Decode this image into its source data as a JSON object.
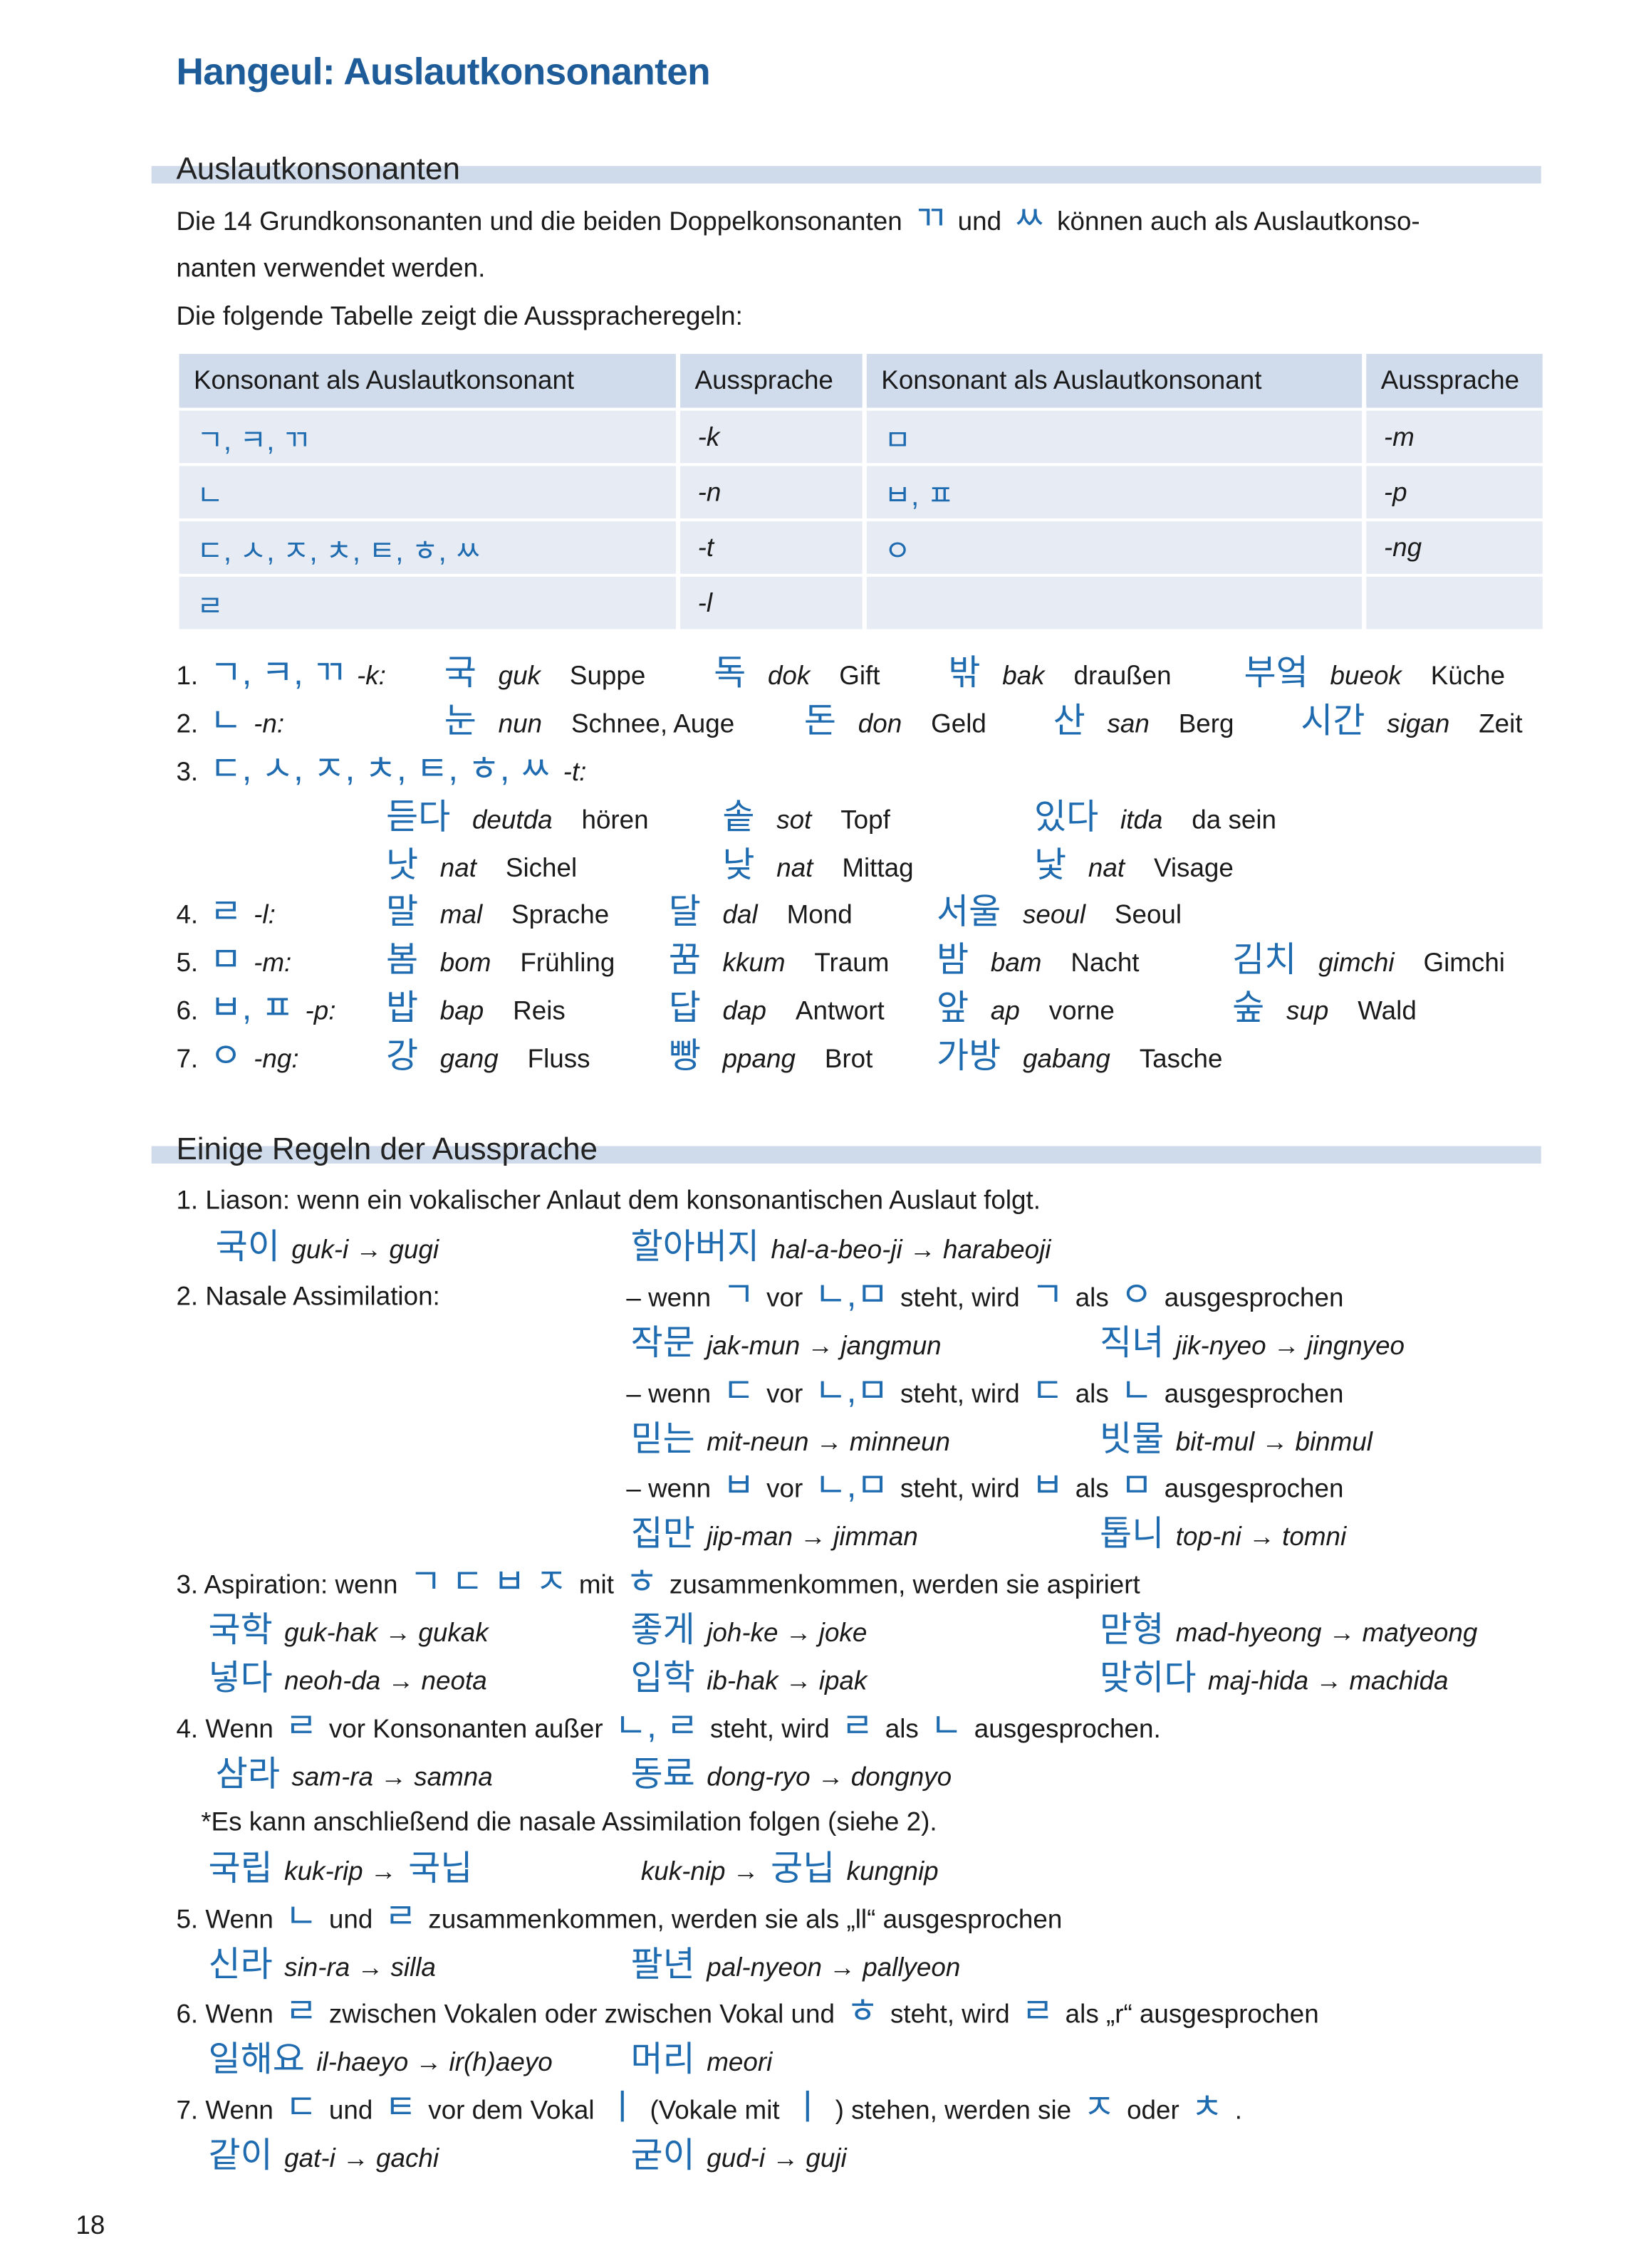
{
  "title": "Hangeul: Auslautkonsonanten",
  "section1": {
    "heading": "Auslautkonsonanten",
    "intro": [
      [
        [
          "n",
          "Die 14 Grundkonsonanten und die beiden Doppelkonsonanten"
        ],
        [
          "k",
          "ㄲ"
        ],
        [
          "n",
          "und"
        ],
        [
          "k",
          "ㅆ"
        ],
        [
          "n",
          "können auch als Auslautkonso-"
        ]
      ],
      [
        [
          "n",
          "nanten  verwendet werden."
        ]
      ],
      [
        [
          "n",
          "Die folgende Tabelle zeigt die Ausspracheregeln:"
        ]
      ]
    ],
    "table": {
      "headers": [
        "Konsonant als Auslautkonsonant",
        "Aussprache",
        "Konsonant als Auslautkonsonant",
        "Aussprache"
      ],
      "rows": [
        [
          "ㄱ, ㅋ, ㄲ",
          "-k",
          "ㅁ",
          "-m"
        ],
        [
          "ㄴ",
          "-n",
          "ㅂ, ㅍ",
          "-p"
        ],
        [
          "ㄷ, ㅅ, ㅈ, ㅊ, ㅌ, ㅎ, ㅆ",
          "-t",
          "ㅇ",
          "-ng"
        ],
        [
          "ㄹ",
          "-l",
          "",
          ""
        ]
      ]
    },
    "examples": [
      {
        "label": [
          [
            "n",
            "1."
          ],
          [
            "k",
            "ㄱ, ㅋ, ㄲ"
          ],
          [
            "i",
            "-k:"
          ]
        ],
        "items": [
          [
            "국",
            "guk",
            "Suppe"
          ],
          [
            "독",
            "dok",
            "Gift"
          ],
          [
            "밖",
            "bak",
            "draußen"
          ],
          [
            "부엌",
            "bueok",
            "Küche"
          ]
        ]
      },
      {
        "label": [
          [
            "n",
            "2."
          ],
          [
            "k",
            "ㄴ"
          ],
          [
            "i",
            "-n:"
          ]
        ],
        "items": [
          [
            "눈",
            "nun",
            "Schnee, Auge"
          ],
          [
            "돈",
            "don",
            "Geld"
          ],
          [
            "산",
            "san",
            "Berg"
          ],
          [
            "시간",
            "sigan",
            "Zeit"
          ]
        ]
      },
      {
        "label": [
          [
            "n",
            "3."
          ],
          [
            "k",
            "ㄷ, ㅅ, ㅈ, ㅊ, ㅌ, ㅎ, ㅆ"
          ],
          [
            "i",
            "-t:"
          ]
        ],
        "items": []
      },
      {
        "label": [],
        "items": [
          [
            "듣다",
            "deutda",
            "hören"
          ],
          [
            "솥",
            "sot",
            "Topf"
          ],
          [
            "있다",
            "itda",
            "da sein"
          ]
        ]
      },
      {
        "label": [],
        "items": [
          [
            "낫",
            "nat",
            "Sichel"
          ],
          [
            "낮",
            "nat",
            "Mittag"
          ],
          [
            "낯",
            "nat",
            "Visage"
          ]
        ]
      },
      {
        "label": [
          [
            "n",
            "4."
          ],
          [
            "k",
            "ㄹ"
          ],
          [
            "i",
            "-l:"
          ]
        ],
        "items": [
          [
            "말",
            "mal",
            "Sprache"
          ],
          [
            "달",
            "dal",
            "Mond"
          ],
          [
            "서울",
            "seoul",
            "Seoul"
          ]
        ]
      },
      {
        "label": [
          [
            "n",
            "5."
          ],
          [
            "k",
            "ㅁ"
          ],
          [
            "i",
            "-m:"
          ]
        ],
        "items": [
          [
            "봄",
            "bom",
            "Frühling"
          ],
          [
            "꿈",
            "kkum",
            "Traum"
          ],
          [
            "밤",
            "bam",
            "Nacht"
          ],
          [
            "김치",
            "gimchi",
            "Gimchi"
          ]
        ]
      },
      {
        "label": [
          [
            "n",
            "6."
          ],
          [
            "k",
            "ㅂ, ㅍ"
          ],
          [
            "i",
            "-p:"
          ]
        ],
        "items": [
          [
            "밥",
            "bap",
            "Reis"
          ],
          [
            "답",
            "dap",
            "Antwort"
          ],
          [
            "앞",
            "ap",
            "vorne"
          ],
          [
            "숲",
            "sup",
            "Wald"
          ]
        ]
      },
      {
        "label": [
          [
            "n",
            "7."
          ],
          [
            "k",
            "ㅇ"
          ],
          [
            "i",
            "-ng:"
          ]
        ],
        "items": [
          [
            "강",
            "gang",
            "Fluss"
          ],
          [
            "빵",
            "ppang",
            "Brot"
          ],
          [
            "가방",
            "gabang",
            "Tasche"
          ]
        ]
      }
    ]
  },
  "section2": {
    "heading": "Einige Regeln der Aussprache",
    "lines": [
      [
        [
          [
            "n",
            "1.  Liason: wenn ein vokalischer Anlaut dem konsonantischen Auslaut folgt."
          ]
        ]
      ],
      [
        [
          [
            "k",
            "국이"
          ],
          [
            "i",
            "guk-i → gugi"
          ]
        ],
        [
          [
            "k",
            "할아버지"
          ],
          [
            "i",
            "hal-a-beo-ji → harabeoji"
          ]
        ]
      ],
      [
        [
          [
            "n",
            "2. Nasale Assimilation:"
          ]
        ],
        [
          [
            "n",
            "– wenn"
          ],
          [
            "k",
            "ㄱ"
          ],
          [
            "n",
            "vor"
          ],
          [
            "k",
            "ㄴ,ㅁ"
          ],
          [
            "n",
            "steht, wird"
          ],
          [
            "k",
            "ㄱ"
          ],
          [
            "n",
            "als"
          ],
          [
            "k",
            "ㅇ"
          ],
          [
            "n",
            "ausgesprochen"
          ]
        ]
      ],
      [
        [],
        [
          [
            "k",
            "작문"
          ],
          [
            "i",
            "jak-mun → jangmun"
          ]
        ],
        [
          [
            "k",
            "직녀"
          ],
          [
            "i",
            "jik-nyeo → jingnyeo"
          ]
        ]
      ],
      [
        [],
        [
          [
            "n",
            "– wenn"
          ],
          [
            "k",
            "ㄷ"
          ],
          [
            "n",
            "vor"
          ],
          [
            "k",
            "ㄴ,ㅁ"
          ],
          [
            "n",
            "steht, wird"
          ],
          [
            "k",
            "ㄷ"
          ],
          [
            "n",
            "als"
          ],
          [
            "k",
            "ㄴ"
          ],
          [
            "n",
            "ausgesprochen"
          ]
        ]
      ],
      [
        [],
        [
          [
            "k",
            "믿는"
          ],
          [
            "i",
            "mit-neun → minneun"
          ]
        ],
        [
          [
            "k",
            "빗물"
          ],
          [
            "i",
            "bit-mul → binmul"
          ]
        ]
      ],
      [
        [],
        [
          [
            "n",
            "– wenn"
          ],
          [
            "k",
            "ㅂ"
          ],
          [
            "n",
            "vor"
          ],
          [
            "k",
            "ㄴ,ㅁ"
          ],
          [
            "n",
            "steht, wird"
          ],
          [
            "k",
            "ㅂ"
          ],
          [
            "n",
            "als"
          ],
          [
            "k",
            "ㅁ"
          ],
          [
            "n",
            "ausgesprochen"
          ]
        ]
      ],
      [
        [],
        [
          [
            "k",
            "집만"
          ],
          [
            "i",
            "jip-man → jimman"
          ]
        ],
        [
          [
            "k",
            "톱니"
          ],
          [
            "i",
            "top-ni → tomni"
          ]
        ]
      ],
      [
        [
          [
            "n",
            "3. Aspiration: wenn"
          ],
          [
            "k",
            "ㄱ  ㄷ  ㅂ  ㅈ"
          ],
          [
            "n",
            "mit"
          ],
          [
            "k",
            "ㅎ"
          ],
          [
            "n",
            "zusammenkommen, werden sie aspiriert"
          ]
        ]
      ],
      [
        [
          [
            "k",
            "국학"
          ],
          [
            "i",
            "guk-hak → gukak"
          ]
        ],
        [
          [
            "k",
            "좋게"
          ],
          [
            "i",
            "joh-ke → joke"
          ]
        ],
        [
          [
            "k",
            "맏형"
          ],
          [
            "i",
            "mad-hyeong → matyeong"
          ]
        ]
      ],
      [
        [
          [
            "k",
            "넣다"
          ],
          [
            "i",
            "neoh-da → neota"
          ]
        ],
        [
          [
            "k",
            "입학"
          ],
          [
            "i",
            "ib-hak → ipak"
          ]
        ],
        [
          [
            "k",
            "맞히다"
          ],
          [
            "i",
            "maj-hida → machida"
          ]
        ]
      ],
      [
        [
          [
            "n",
            "4. Wenn"
          ],
          [
            "k",
            "ㄹ"
          ],
          [
            "n",
            "vor Konsonanten außer"
          ],
          [
            "k",
            "ㄴ, ㄹ"
          ],
          [
            "n",
            "steht, wird"
          ],
          [
            "k",
            "ㄹ"
          ],
          [
            "n",
            "als"
          ],
          [
            "k",
            "ㄴ"
          ],
          [
            "n",
            "ausgesprochen."
          ]
        ]
      ],
      [
        [
          [
            "k",
            "삼라"
          ],
          [
            "i",
            "sam-ra → samna"
          ]
        ],
        [
          [
            "k",
            "동료"
          ],
          [
            "i",
            "dong-ryo → dongnyo"
          ]
        ]
      ],
      [
        [
          [
            "n",
            "*Es kann anschließend die  nasale Assimilation folgen (siehe 2)."
          ]
        ]
      ],
      [
        [
          [
            "k",
            "국립"
          ],
          [
            "i",
            "kuk-rip →"
          ],
          [
            "k",
            "국닙"
          ]
        ],
        [
          [
            "i",
            "kuk-nip →"
          ],
          [
            "k",
            "궁닙"
          ],
          [
            "i",
            "kungnip"
          ]
        ]
      ],
      [
        [
          [
            "n",
            "5. Wenn"
          ],
          [
            "k",
            "ㄴ"
          ],
          [
            "n",
            "und"
          ],
          [
            "k",
            "ㄹ"
          ],
          [
            "n",
            "zusammenkommen, werden sie als „ll“ ausgesprochen"
          ]
        ]
      ],
      [
        [
          [
            "k",
            "신라"
          ],
          [
            "i",
            "sin-ra → silla"
          ]
        ],
        [
          [
            "k",
            "팔년"
          ],
          [
            "i",
            "pal-nyeon → pallyeon"
          ]
        ]
      ],
      [
        [
          [
            "n",
            "6. Wenn"
          ],
          [
            "k",
            "ㄹ"
          ],
          [
            "n",
            "zwischen Vokalen oder zwischen Vokal und"
          ],
          [
            "k",
            "ㅎ"
          ],
          [
            "n",
            "steht, wird"
          ],
          [
            "k",
            "ㄹ"
          ],
          [
            "n",
            "als „r“ ausgesprochen"
          ]
        ]
      ],
      [
        [
          [
            "k",
            "일해요"
          ],
          [
            "i",
            "il-haeyo → ir(h)aeyo"
          ]
        ],
        [
          [
            "k",
            "머리"
          ],
          [
            "i",
            "meori"
          ]
        ]
      ],
      [
        [
          [
            "n",
            "7. Wenn"
          ],
          [
            "k",
            "ㄷ"
          ],
          [
            "n",
            "und"
          ],
          [
            "k",
            "ㅌ"
          ],
          [
            "n",
            "vor dem Vokal"
          ],
          [
            "k",
            "ㅣ"
          ],
          [
            "n",
            "(Vokale mit"
          ],
          [
            "k",
            "ㅣ"
          ],
          [
            "n",
            ") stehen, werden sie"
          ],
          [
            "k",
            "ㅈ"
          ],
          [
            "n",
            "oder"
          ],
          [
            "k",
            "ㅊ"
          ],
          [
            "n",
            "."
          ]
        ]
      ],
      [
        [
          [
            "k",
            "같이"
          ],
          [
            "i",
            "gat-i → gachi"
          ]
        ],
        [
          [
            "k",
            "굳이"
          ],
          [
            "i",
            "gud-i → guji"
          ]
        ]
      ]
    ]
  },
  "page_number": "18",
  "colors": {
    "heading": "#1d5c98",
    "hangul": "#1f6bb0",
    "band": "#cfdbea",
    "table_header": "#d0dcec",
    "table_cell": "#e6ebf4"
  }
}
